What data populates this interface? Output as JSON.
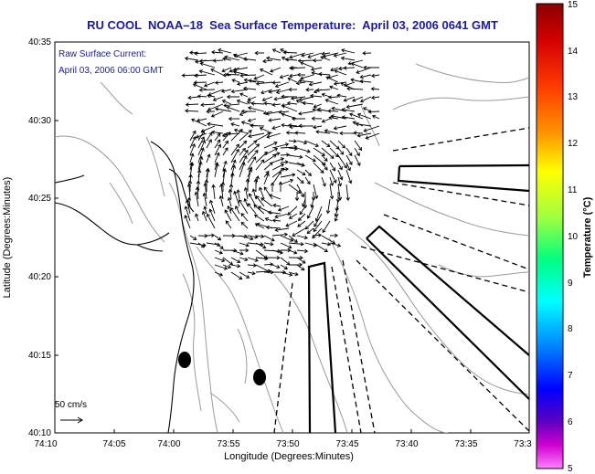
{
  "title": "RU COOL  NOAA–18  Sea Surface Temperature:  April 03, 2006 0641 GMT",
  "annotation": {
    "line1": "Raw Surface Current:",
    "line2": "April 03, 2006 06:00 GMT"
  },
  "scale_label": "50 cm/s",
  "x_axis": {
    "title": "Longitude (Degrees:Minutes)",
    "ticks": [
      "74:10",
      "74:05",
      "74:00",
      "73:55",
      "73:50",
      "73:45",
      "73:40",
      "73:35",
      "73:3"
    ]
  },
  "y_axis": {
    "title": "Latitude (Degrees:Minutes)",
    "ticks": [
      "40:35",
      "40:30",
      "40:25",
      "40:20",
      "40:15",
      "40:10"
    ]
  },
  "colorbar": {
    "title": "Temperature (°C)",
    "ticks": [
      "15",
      "14",
      "13",
      "12",
      "11",
      "10",
      "9",
      "8",
      "7",
      "6",
      "5"
    ],
    "colors": [
      "#8b0000",
      "#ff0000",
      "#ff8000",
      "#ffff00",
      "#80ff00",
      "#00ff80",
      "#00ffff",
      "#0080ff",
      "#0000ff",
      "#8000ff",
      "#ff00ff"
    ]
  }
}
